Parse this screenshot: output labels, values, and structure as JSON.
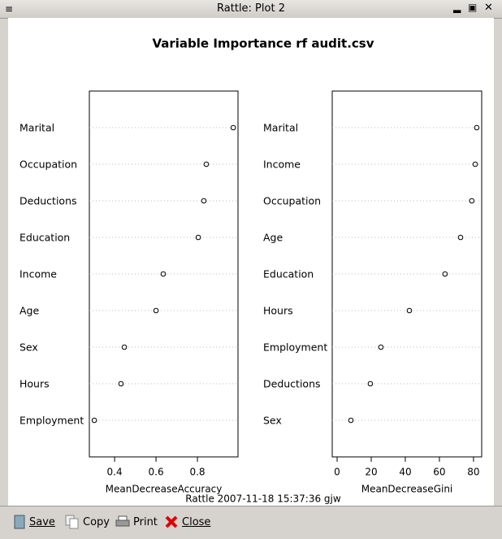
{
  "window": {
    "title": "Rattle: Plot 2",
    "buttons": [
      "Save",
      "Copy",
      "Print",
      "Close"
    ]
  },
  "figure": {
    "title": "Variable Importance rf audit.csv",
    "footer": "Rattle 2007-11-18 15:37:36 gjw"
  },
  "chart_data": [
    {
      "type": "dot",
      "x_label": "MeanDecreaseAccuracy",
      "categories": [
        "Marital",
        "Occupation",
        "Deductions",
        "Education",
        "Income",
        "Age",
        "Sex",
        "Hours",
        "Employment"
      ],
      "values": [
        0.973,
        0.843,
        0.831,
        0.804,
        0.635,
        0.6,
        0.447,
        0.431,
        0.302
      ],
      "xlim": [
        0.278,
        0.996
      ],
      "xticks": [
        0.4,
        0.6,
        0.8
      ],
      "grid": true,
      "color": "#000000"
    },
    {
      "type": "dot",
      "x_label": "MeanDecreaseGini",
      "categories": [
        "Marital",
        "Income",
        "Occupation",
        "Age",
        "Education",
        "Hours",
        "Employment",
        "Deductions",
        "Sex"
      ],
      "values": [
        81.9,
        81.0,
        79.0,
        72.4,
        63.3,
        42.4,
        25.7,
        19.5,
        8.1
      ],
      "xlim": [
        -2.86,
        84.8
      ],
      "xticks": [
        0,
        20,
        40,
        60,
        80
      ],
      "grid": true,
      "color": "#000000"
    }
  ]
}
